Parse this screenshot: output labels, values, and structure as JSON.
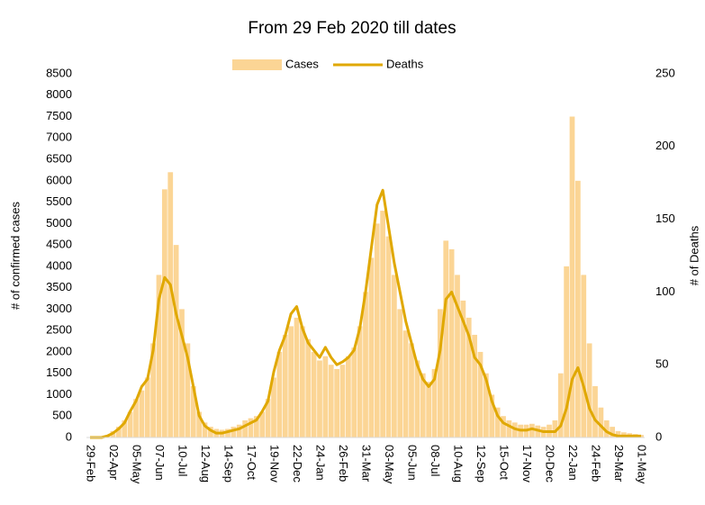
{
  "chart_data": {
    "type": "bar-line",
    "title": "From 29 Feb 2020 till dates",
    "y_label": "# of confirmed cases",
    "y2_label": "# of Deaths",
    "categories": [
      "29-Feb",
      null,
      null,
      null,
      "02-Apr",
      null,
      null,
      null,
      "05-May",
      null,
      null,
      null,
      "07-Jun",
      null,
      null,
      null,
      "10-Jul",
      null,
      null,
      null,
      "12-Aug",
      null,
      null,
      null,
      "14-Sep",
      null,
      null,
      null,
      "17-Oct",
      null,
      null,
      null,
      "19-Nov",
      null,
      null,
      null,
      "22-Dec",
      null,
      null,
      null,
      "24-Jan",
      null,
      null,
      null,
      "26-Feb",
      null,
      null,
      null,
      "31-Mar",
      null,
      null,
      null,
      "03-May",
      null,
      null,
      null,
      "05-Jun",
      null,
      null,
      null,
      "08-Jul",
      null,
      null,
      null,
      "10-Aug",
      null,
      null,
      null,
      "12-Sep",
      null,
      null,
      null,
      "15-Oct",
      null,
      null,
      null,
      "17-Nov",
      null,
      null,
      null,
      "20-Dec",
      null,
      null,
      null,
      "22-Jan",
      null,
      null,
      null,
      "24-Feb",
      null,
      null,
      null,
      "29-Mar",
      null,
      null,
      null,
      "01-May"
    ],
    "series": [
      {
        "name": "Cases",
        "type": "bar",
        "color": "#fbd595",
        "values": [
          0,
          0,
          10,
          50,
          150,
          250,
          400,
          600,
          900,
          1100,
          1400,
          2200,
          3800,
          5800,
          6200,
          4500,
          3000,
          2200,
          1200,
          600,
          350,
          250,
          200,
          180,
          200,
          250,
          300,
          400,
          450,
          500,
          600,
          900,
          1400,
          2000,
          2400,
          2600,
          2800,
          2600,
          2300,
          2000,
          1800,
          1900,
          1700,
          1600,
          1700,
          1900,
          2100,
          2600,
          3400,
          4200,
          5000,
          5300,
          4700,
          3800,
          3000,
          2500,
          2200,
          1800,
          1500,
          1300,
          1600,
          3000,
          4600,
          4400,
          3800,
          3200,
          2800,
          2400,
          2000,
          1500,
          1000,
          700,
          500,
          400,
          350,
          300,
          300,
          320,
          280,
          250,
          300,
          400,
          1500,
          4000,
          7500,
          6000,
          3800,
          2200,
          1200,
          700,
          400,
          250,
          150,
          120,
          100,
          80,
          60
        ]
      },
      {
        "name": "Deaths",
        "type": "line",
        "axis": "y2",
        "color": "#e0a800",
        "values": [
          0,
          0,
          0,
          1,
          3,
          6,
          10,
          18,
          25,
          35,
          40,
          60,
          95,
          110,
          105,
          85,
          70,
          55,
          35,
          15,
          8,
          5,
          3,
          3,
          4,
          5,
          6,
          8,
          10,
          12,
          18,
          25,
          45,
          60,
          70,
          85,
          90,
          75,
          65,
          60,
          55,
          62,
          55,
          50,
          52,
          55,
          60,
          75,
          100,
          130,
          160,
          170,
          145,
          120,
          100,
          80,
          65,
          50,
          40,
          35,
          40,
          60,
          95,
          100,
          90,
          80,
          70,
          55,
          50,
          40,
          25,
          15,
          10,
          8,
          6,
          5,
          5,
          6,
          5,
          4,
          4,
          4,
          8,
          20,
          40,
          48,
          35,
          20,
          12,
          8,
          4,
          2,
          1,
          1,
          1,
          1,
          1
        ]
      }
    ],
    "ylim": [
      0,
      8500
    ],
    "yticks": [
      0,
      500,
      1000,
      1500,
      2000,
      2500,
      3000,
      3500,
      4000,
      4500,
      5000,
      5500,
      6000,
      6500,
      7000,
      7500,
      8000,
      8500
    ],
    "y2lim": [
      0,
      250
    ],
    "y2ticks": [
      0,
      50,
      100,
      150,
      200,
      250
    ],
    "legend": "top"
  }
}
